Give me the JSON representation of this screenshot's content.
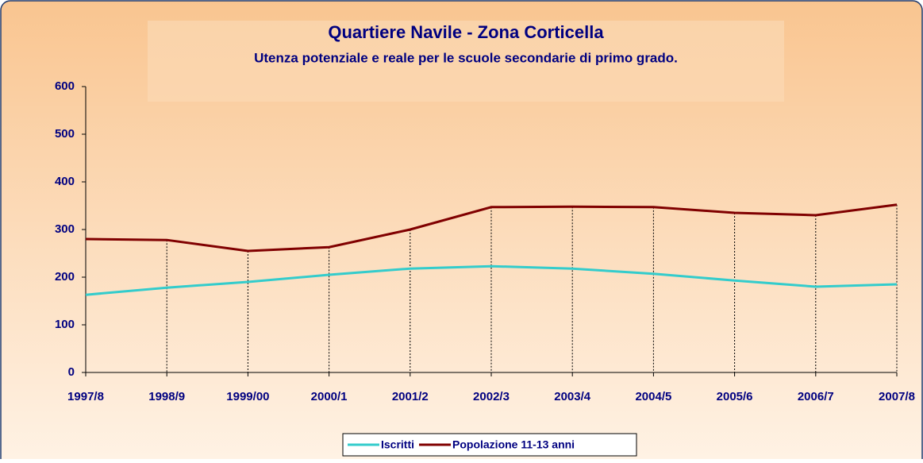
{
  "chart_data": {
    "type": "line",
    "title": "Quartiere Navile - Zona Corticella",
    "subtitle": "Utenza potenziale e reale per le scuole secondarie di primo grado.",
    "categories": [
      "1997/8",
      "1998/9",
      "1999/00",
      "2000/1",
      "2001/2",
      "2002/3",
      "2003/4",
      "2004/5",
      "2005/6",
      "2006/7",
      "2007/8"
    ],
    "series": [
      {
        "name": "Iscritti",
        "color": "#33cccc",
        "values": [
          163,
          178,
          190,
          205,
          218,
          223,
          218,
          207,
          193,
          180,
          185
        ]
      },
      {
        "name": "Popolazione 11-13 anni",
        "color": "#800000",
        "values": [
          280,
          278,
          255,
          263,
          300,
          347,
          348,
          347,
          335,
          330,
          352
        ]
      }
    ],
    "ylim": [
      0,
      600
    ],
    "yticks": [
      0,
      100,
      200,
      300,
      400,
      500,
      600
    ],
    "drop_lines": true,
    "legend": "bottom"
  }
}
